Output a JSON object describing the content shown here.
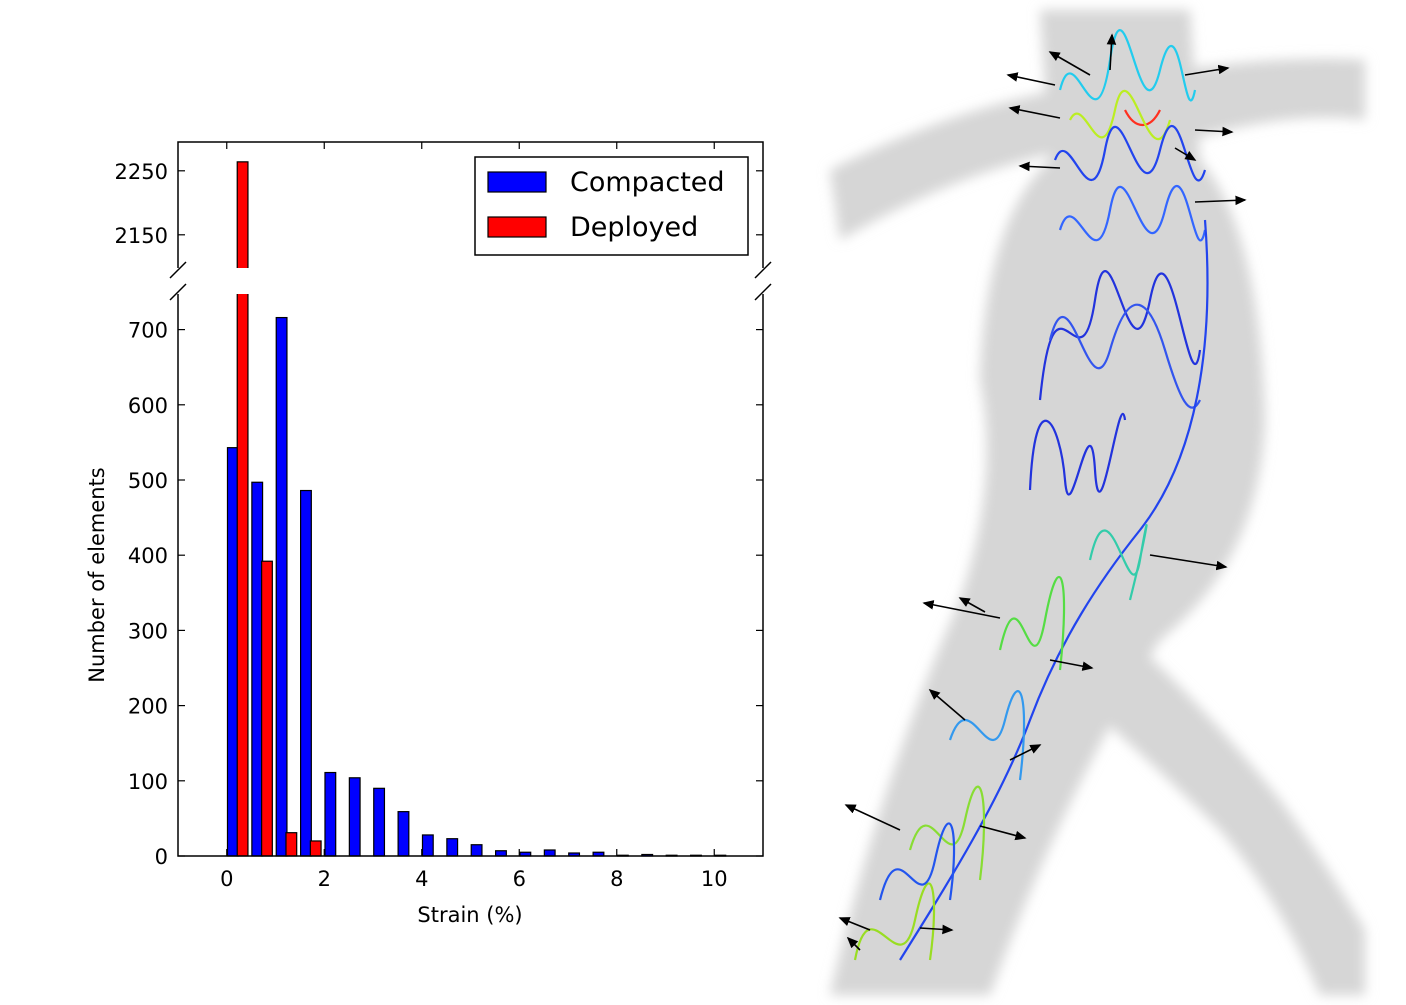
{
  "chart_data": [
    {
      "type": "bar",
      "title": "",
      "xlabel": "Strain (%)",
      "ylabel": "Number of elements",
      "xlim": [
        -1,
        11
      ],
      "ylim_lower": [
        0,
        750
      ],
      "ylim_upper": [
        2095,
        2295
      ],
      "broken_y_axis": true,
      "x_ticks": [
        0,
        2,
        4,
        6,
        8,
        10
      ],
      "y_ticks_lower": [
        0,
        100,
        200,
        300,
        400,
        500,
        600,
        700
      ],
      "y_ticks_upper": [
        2150,
        2250
      ],
      "bar_width": 0.22,
      "legend_position": "top-right",
      "series": [
        {
          "name": "Compacted",
          "color": "#0000ff",
          "x": [
            0.125,
            0.625,
            1.125,
            1.625,
            2.125,
            2.625,
            3.125,
            3.625,
            4.125,
            4.625,
            5.125,
            5.625,
            6.125,
            6.625,
            7.125,
            7.625,
            8.125,
            8.625,
            9.125,
            9.625,
            10.125
          ],
          "values": [
            543,
            497,
            716,
            486,
            111,
            104,
            90,
            59,
            28,
            23,
            15,
            7,
            5,
            8,
            4,
            5,
            1,
            2,
            1,
            1,
            1
          ]
        },
        {
          "name": "Deployed",
          "color": "#ff0000",
          "x": [
            0.325,
            0.825,
            1.325,
            1.825
          ],
          "values": [
            2264,
            392,
            31,
            20
          ]
        }
      ]
    },
    {
      "type": "image",
      "description_free": true,
      "colors": {
        "vessel": "#d8d8d8",
        "stent_low": "#2222dd",
        "stent_mid": "#22ccff",
        "stent_high": "#ff2020",
        "arrows": "#000000"
      }
    }
  ]
}
